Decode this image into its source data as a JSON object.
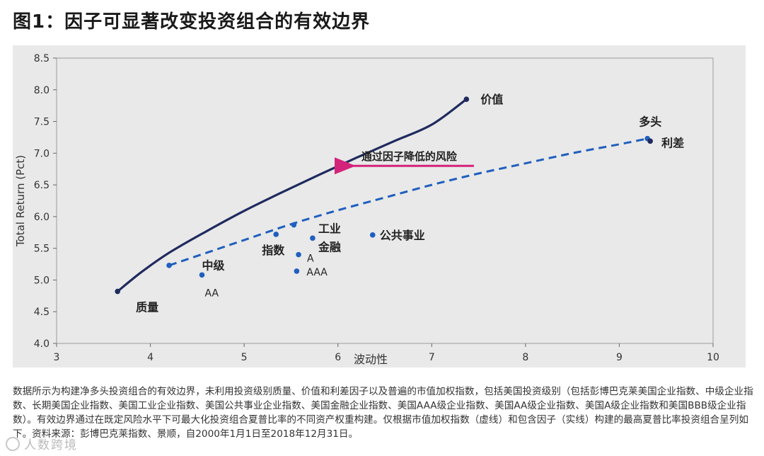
{
  "header": {
    "title": "图1：因子可显著改变投资组合的有效边界"
  },
  "chart_data": {
    "type": "line",
    "title": "",
    "xlabel": "波动性",
    "ylabel": "Total Return (Pct)",
    "xlim": [
      3,
      10
    ],
    "ylim": [
      4.0,
      8.5
    ],
    "xticks": [
      3,
      4,
      5,
      6,
      7,
      8,
      9,
      10
    ],
    "yticks": [
      4.0,
      4.5,
      5.0,
      5.5,
      6.0,
      6.5,
      7.0,
      7.5,
      8.0,
      8.5
    ],
    "ytick_labels": [
      "4.0",
      "4.5",
      "5.0",
      "5.5",
      "6.0",
      "6.5",
      "7.0",
      "7.5",
      "8.0",
      "8.5"
    ],
    "grid": false,
    "series": [
      {
        "style": "solid",
        "color": "#1f2a5e",
        "x": [
          3.65,
          3.9,
          4.2,
          4.6,
          5.0,
          5.4,
          5.8,
          6.2,
          6.6,
          7.0,
          7.37
        ],
        "y": [
          4.82,
          5.12,
          5.43,
          5.77,
          6.09,
          6.38,
          6.66,
          6.93,
          7.19,
          7.45,
          7.85
        ]
      },
      {
        "style": "dashed",
        "color": "#1f5fbf",
        "x": [
          4.2,
          4.6,
          5.0,
          5.5,
          6.0,
          6.5,
          7.0,
          7.5,
          8.0,
          8.5,
          9.0,
          9.3
        ],
        "y": [
          5.23,
          5.43,
          5.63,
          5.88,
          6.1,
          6.3,
          6.5,
          6.68,
          6.84,
          7.0,
          7.14,
          7.23
        ]
      }
    ],
    "points": [
      {
        "label": "价值",
        "x": 7.37,
        "y": 7.85,
        "color": "#1f2a5e"
      },
      {
        "label": "质量",
        "x": 3.65,
        "y": 4.82,
        "color": "#1f2a5e"
      },
      {
        "label": "多头",
        "x": 9.3,
        "y": 7.23,
        "color": "#1f5fbf"
      },
      {
        "label": "利差",
        "x": 9.33,
        "y": 7.19,
        "color": "#1f2a5e"
      },
      {
        "label": "",
        "x": 4.2,
        "y": 5.23,
        "color": "#1f5fbf"
      },
      {
        "label": "中级",
        "x": 4.55,
        "y": 5.08,
        "color": "#1f5fbf"
      },
      {
        "label": "AA",
        "x": 4.55,
        "y": 5.08,
        "color": "#1f5fbf"
      },
      {
        "label": "指数",
        "x": 5.34,
        "y": 5.72,
        "color": "#1f5fbf"
      },
      {
        "label": "",
        "x": 5.53,
        "y": 5.87,
        "color": "#1f5fbf"
      },
      {
        "label": "工业",
        "x": 5.73,
        "y": 5.66,
        "color": "#1f5fbf"
      },
      {
        "label": "金融",
        "x": 5.73,
        "y": 5.66,
        "color": "#1f5fbf"
      },
      {
        "label": "A",
        "x": 5.58,
        "y": 5.4,
        "color": "#1f5fbf"
      },
      {
        "label": "AAA",
        "x": 5.56,
        "y": 5.14,
        "color": "#1f5fbf"
      },
      {
        "label": "公共事业",
        "x": 6.37,
        "y": 5.71,
        "color": "#1f5fbf"
      }
    ],
    "annotations": [
      {
        "text": "通过因子降低的风险",
        "color": "#d4237a",
        "arrow_from": [
          7.45,
          6.8
        ],
        "arrow_to": [
          6.1,
          6.8
        ]
      }
    ]
  },
  "caption": {
    "text": "数据所示为构建净多头投资组合的有效边界，未利用投资级别质量、价值和利差因子以及普遍的市值加权指数，包括美国投资级别（包括彭博巴克莱美国企业指数、中级企业指数、长期美国企业指数、美国工业企业指数、美国公共事业企业指数、美国金融企业指数、美国AAA级企业指数、美国AA级企业指数、美国A级企业指数和美国BBB级企业指数）。有效边界通过在既定风险水平下可最大化投资组合夏普比率的不同资产权重构建。仅根据市值加权指数（虚线）和包含因子（实线）构建的最高夏普比率投资组合呈列如下。资料来源：彭博巴克莱指数、景顺，自2000年1月1日至2018年12月31日。"
  },
  "watermark": {
    "text": "人数跨境"
  }
}
